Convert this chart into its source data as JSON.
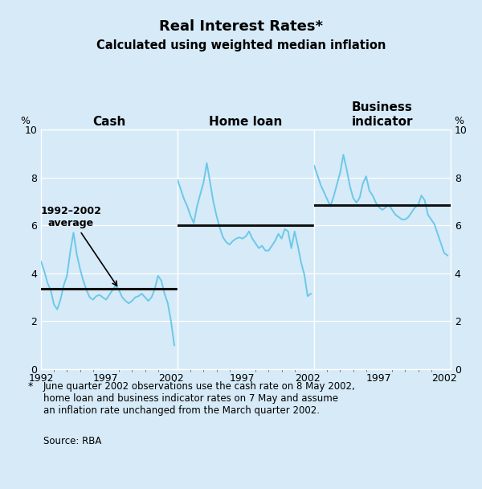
{
  "title": "Real Interest Rates*",
  "subtitle": "Calculated using weighted median inflation",
  "panel_titles": [
    "Cash",
    "Home loan",
    "Business\nindicator"
  ],
  "ylabel_left": "%",
  "ylabel_right": "%",
  "xlim": [
    1992,
    2002.5
  ],
  "ylim": [
    0,
    10
  ],
  "yticks": [
    0,
    2,
    4,
    6,
    8,
    10
  ],
  "background_color": "#d6eaf8",
  "line_color": "#6cc8e8",
  "avg_line_color": "#111111",
  "cash_avg": 3.35,
  "homeloan_avg": 6.0,
  "business_avg": 6.85,
  "cash_x": [
    1992.0,
    1992.25,
    1992.5,
    1992.75,
    1993.0,
    1993.25,
    1993.5,
    1993.75,
    1994.0,
    1994.25,
    1994.5,
    1994.75,
    1995.0,
    1995.25,
    1995.5,
    1995.75,
    1996.0,
    1996.25,
    1996.5,
    1996.75,
    1997.0,
    1997.25,
    1997.5,
    1997.75,
    1998.0,
    1998.25,
    1998.5,
    1998.75,
    1999.0,
    1999.25,
    1999.5,
    1999.75,
    2000.0,
    2000.25,
    2000.5,
    2000.75,
    2001.0,
    2001.25,
    2001.5,
    2001.75,
    2002.0,
    2002.25
  ],
  "cash_y": [
    4.5,
    4.1,
    3.6,
    3.3,
    2.7,
    2.5,
    2.9,
    3.5,
    3.9,
    4.9,
    5.7,
    4.8,
    4.2,
    3.7,
    3.3,
    3.0,
    2.9,
    3.05,
    3.1,
    3.0,
    2.9,
    3.1,
    3.3,
    3.5,
    3.3,
    3.0,
    2.85,
    2.75,
    2.85,
    3.0,
    3.05,
    3.15,
    3.0,
    2.85,
    3.0,
    3.35,
    3.9,
    3.7,
    3.15,
    2.75,
    2.0,
    1.0
  ],
  "homeloan_x": [
    1992.0,
    1992.25,
    1992.5,
    1992.75,
    1993.0,
    1993.25,
    1993.5,
    1993.75,
    1994.0,
    1994.25,
    1994.5,
    1994.75,
    1995.0,
    1995.25,
    1995.5,
    1995.75,
    1996.0,
    1996.25,
    1996.5,
    1996.75,
    1997.0,
    1997.25,
    1997.5,
    1997.75,
    1998.0,
    1998.25,
    1998.5,
    1998.75,
    1999.0,
    1999.25,
    1999.5,
    1999.75,
    2000.0,
    2000.25,
    2000.5,
    2000.75,
    2001.0,
    2001.25,
    2001.5,
    2001.75,
    2002.0,
    2002.25
  ],
  "homeloan_y": [
    7.9,
    7.5,
    7.1,
    6.8,
    6.4,
    6.1,
    6.8,
    7.3,
    7.8,
    8.6,
    7.8,
    7.0,
    6.4,
    5.9,
    5.5,
    5.3,
    5.2,
    5.35,
    5.45,
    5.5,
    5.45,
    5.55,
    5.75,
    5.45,
    5.25,
    5.05,
    5.15,
    4.95,
    4.95,
    5.15,
    5.35,
    5.65,
    5.45,
    5.85,
    5.75,
    5.05,
    5.75,
    5.15,
    4.45,
    3.95,
    3.05,
    3.15
  ],
  "business_x": [
    1992.0,
    1992.25,
    1992.5,
    1992.75,
    1993.0,
    1993.25,
    1993.5,
    1993.75,
    1994.0,
    1994.25,
    1994.5,
    1994.75,
    1995.0,
    1995.25,
    1995.5,
    1995.75,
    1996.0,
    1996.25,
    1996.5,
    1996.75,
    1997.0,
    1997.25,
    1997.5,
    1997.75,
    1998.0,
    1998.25,
    1998.5,
    1998.75,
    1999.0,
    1999.25,
    1999.5,
    1999.75,
    2000.0,
    2000.25,
    2000.5,
    2000.75,
    2001.0,
    2001.25,
    2001.5,
    2001.75,
    2002.0,
    2002.25
  ],
  "business_y": [
    8.5,
    8.1,
    7.7,
    7.4,
    7.1,
    6.8,
    7.2,
    7.7,
    8.2,
    8.95,
    8.35,
    7.65,
    7.15,
    6.95,
    7.15,
    7.75,
    8.05,
    7.45,
    7.25,
    6.95,
    6.75,
    6.65,
    6.75,
    6.85,
    6.65,
    6.45,
    6.35,
    6.25,
    6.25,
    6.35,
    6.55,
    6.75,
    6.85,
    7.25,
    7.05,
    6.45,
    6.25,
    6.05,
    5.65,
    5.25,
    4.85,
    4.75
  ]
}
